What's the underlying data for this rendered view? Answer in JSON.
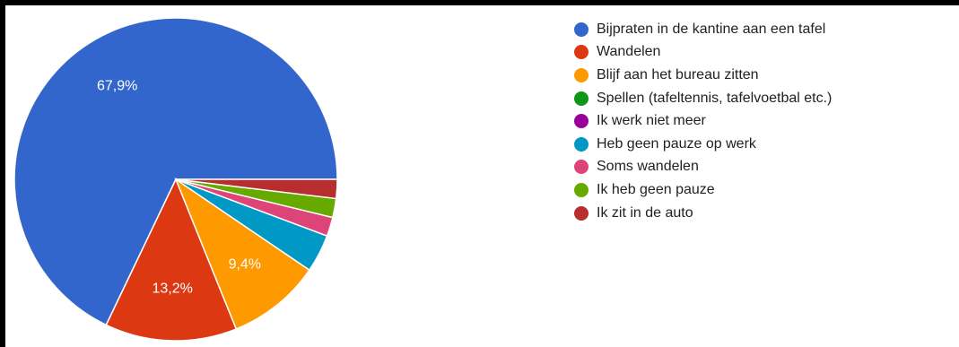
{
  "chart_data": {
    "type": "pie",
    "title": "",
    "categories": [
      "Bijpraten in de kantine aan een tafel",
      "Wandelen",
      "Blijf aan het bureau zitten",
      "Spellen (tafeltennis, tafelvoetbal etc.)",
      "Ik werk niet meer",
      "Heb geen pauze op werk",
      "Soms wandelen",
      "Ik heb geen pauze",
      "Ik zit in de auto"
    ],
    "values": [
      67.9,
      13.2,
      9.4,
      0,
      0,
      3.8,
      1.9,
      1.9,
      1.9
    ],
    "colors": [
      "#3366cc",
      "#dc3912",
      "#ff9900",
      "#109618",
      "#990099",
      "#0099c6",
      "#dd4477",
      "#66aa00",
      "#b82e2e"
    ],
    "data_labels": [
      "67,9%",
      "13,2%",
      "9,4%",
      "",
      "",
      "",
      "",
      "",
      ""
    ],
    "legend_position": "right"
  }
}
